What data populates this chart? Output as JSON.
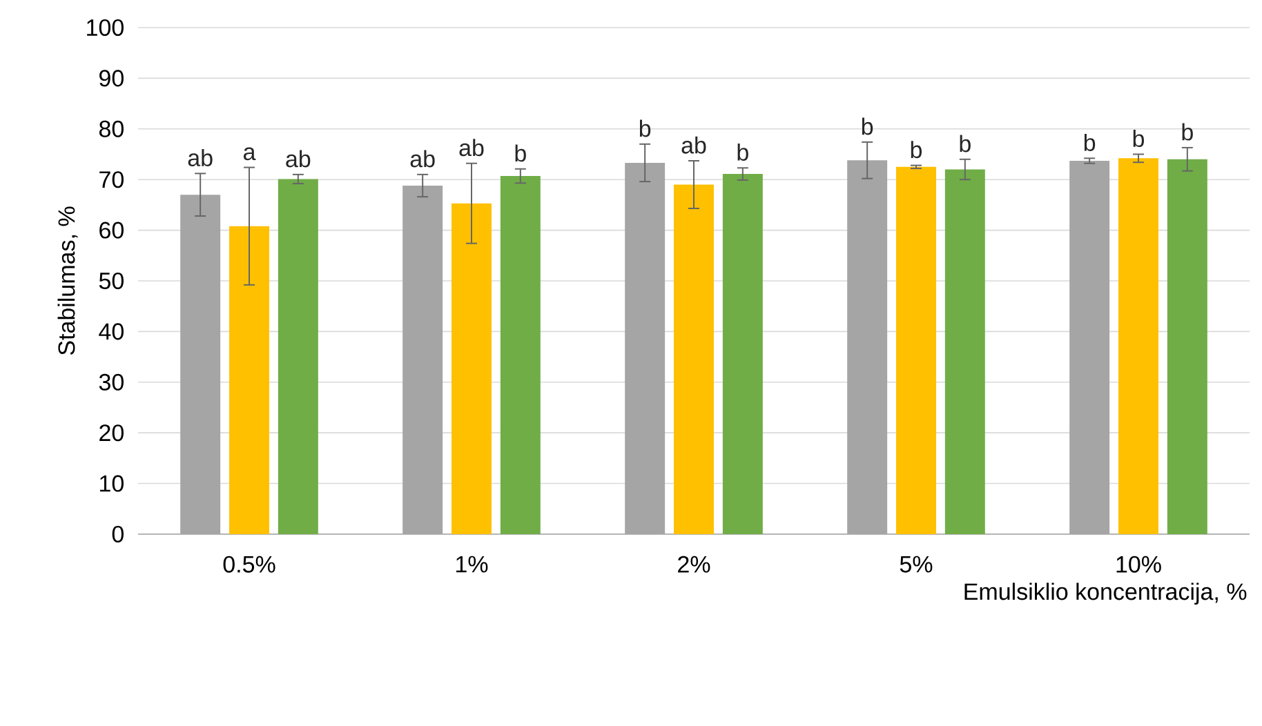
{
  "chart_data": {
    "type": "bar",
    "xlabel": "Emulsiklio koncentracija, %",
    "ylabel": "Stabilumas, %",
    "categories": [
      "0.5%",
      "1%",
      "2%",
      "5%",
      "10%"
    ],
    "series": [
      {
        "color": "#a5a5a5",
        "values": [
          67,
          68.8,
          73.3,
          73.8,
          73.7
        ],
        "errors": [
          4.2,
          2.2,
          3.7,
          3.6,
          0.5
        ],
        "value_labels": [
          "ab",
          "ab",
          "b",
          "b",
          "b"
        ]
      },
      {
        "color": "#ffc000",
        "values": [
          60.8,
          65.3,
          69,
          72.5,
          74.2
        ],
        "errors": [
          11.6,
          7.9,
          4.7,
          0.3,
          0.8
        ],
        "value_labels": [
          "a",
          "ab",
          "ab",
          "b",
          "b"
        ]
      },
      {
        "color": "#70ad47",
        "values": [
          70.1,
          70.7,
          71.1,
          72,
          74
        ],
        "errors": [
          0.9,
          1.4,
          1.2,
          2,
          2.3
        ],
        "value_labels": [
          "ab",
          "b",
          "b",
          "b",
          "b"
        ]
      }
    ],
    "ylim": [
      0,
      100
    ],
    "yticks": [
      0,
      10,
      20,
      30,
      40,
      50,
      60,
      70,
      80,
      90,
      100
    ],
    "grid": "y"
  }
}
